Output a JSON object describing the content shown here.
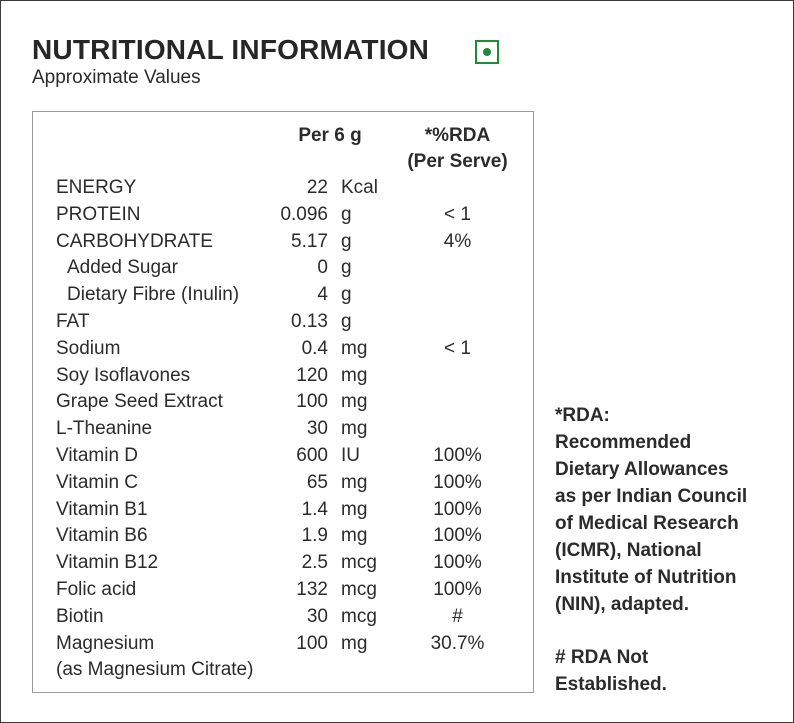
{
  "title": "NUTRITIONAL INFORMATION",
  "veg_mark_icon": "veg-symbol-icon",
  "veg_color": "#1f8a3a",
  "subtitle": "Approximate Values",
  "table": {
    "col_per": "Per 6 g",
    "col_rda_line1": "*%RDA",
    "col_rda_line2": "(Per Serve)",
    "rows": [
      {
        "name": "ENERGY",
        "amount": "22",
        "unit": "Kcal",
        "rda": ""
      },
      {
        "name": "PROTEIN",
        "amount": "0.096",
        "unit": "g",
        "rda": "< 1"
      },
      {
        "name": "CARBOHYDRATE",
        "amount": "5.17",
        "unit": "g",
        "rda": "4%"
      },
      {
        "name": "Added Sugar",
        "amount": "0",
        "unit": "g",
        "rda": ""
      },
      {
        "name": "Dietary Fibre (Inulin)",
        "amount": "4",
        "unit": "g",
        "rda": ""
      },
      {
        "name": "FAT",
        "amount": "0.13",
        "unit": "g",
        "rda": ""
      },
      {
        "name": "Sodium",
        "amount": "0.4",
        "unit": "mg",
        "rda": "< 1"
      },
      {
        "name": "Soy Isoflavones",
        "amount": "120",
        "unit": "mg",
        "rda": ""
      },
      {
        "name": "Grape Seed Extract",
        "amount": "100",
        "unit": "mg",
        "rda": ""
      },
      {
        "name": "L-Theanine",
        "amount": "30",
        "unit": "mg",
        "rda": ""
      },
      {
        "name": "Vitamin D",
        "amount": "600",
        "unit": "IU",
        "rda": "100%"
      },
      {
        "name": "Vitamin C",
        "amount": "65",
        "unit": "mg",
        "rda": "100%"
      },
      {
        "name": "Vitamin B1",
        "amount": "1.4",
        "unit": "mg",
        "rda": "100%"
      },
      {
        "name": "Vitamin B6",
        "amount": "1.9",
        "unit": "mg",
        "rda": "100%"
      },
      {
        "name": "Vitamin B12",
        "amount": "2.5",
        "unit": "mcg",
        "rda": "100%"
      },
      {
        "name": "Folic acid",
        "amount": "132",
        "unit": "mcg",
        "rda": "100%"
      },
      {
        "name": "Biotin",
        "amount": "30",
        "unit": "mcg",
        "rda": "#"
      },
      {
        "name": "Magnesium",
        "amount": "100",
        "unit": "mg",
        "rda": "30.7%"
      },
      {
        "name": "(as Magnesium Citrate)",
        "amount": "",
        "unit": "",
        "rda": ""
      }
    ]
  },
  "notes": {
    "rda_lines": [
      "*RDA:",
      "Recommended",
      "Dietary Allowances",
      "as per Indian Council",
      "of Medical Research",
      "(ICMR), National",
      "Institute of Nutrition",
      "(NIN), adapted."
    ],
    "hash_lines": [
      "# RDA Not",
      "Established."
    ]
  }
}
